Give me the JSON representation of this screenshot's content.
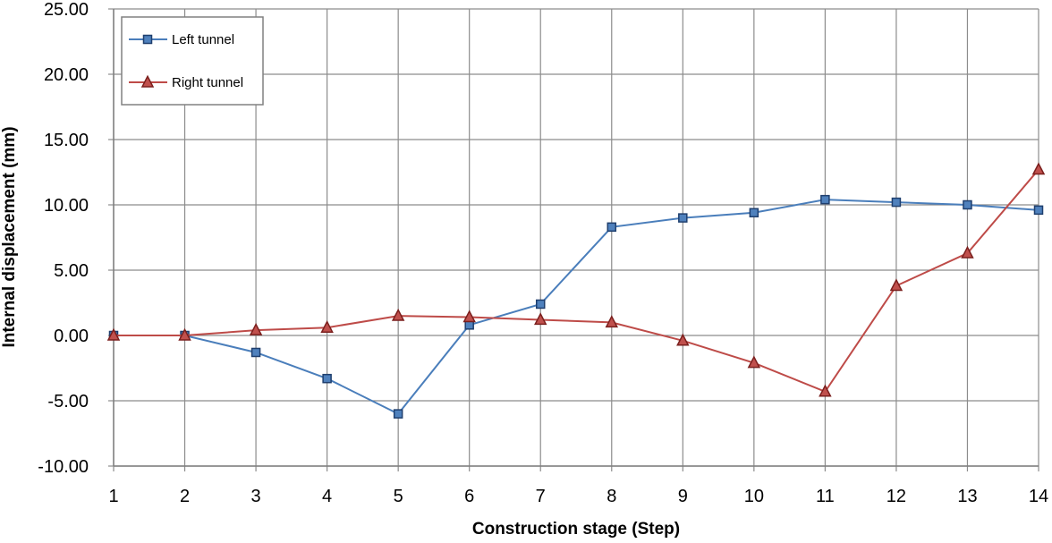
{
  "chart_data": {
    "type": "line",
    "xlabel": "Construction stage (Step)",
    "ylabel": "Internal displacement (mm)",
    "x": [
      1,
      2,
      3,
      4,
      5,
      6,
      7,
      8,
      9,
      10,
      11,
      12,
      13,
      14
    ],
    "xticks": [
      "1",
      "2",
      "3",
      "4",
      "5",
      "6",
      "7",
      "8",
      "9",
      "10",
      "11",
      "12",
      "13",
      "14"
    ],
    "ylim": [
      -10,
      25
    ],
    "yticks": [
      "-10.00",
      "-5.00",
      "0.00",
      "5.00",
      "10.00",
      "15.00",
      "20.00",
      "25.00"
    ],
    "ytick_values": [
      -10,
      -5,
      0,
      5,
      10,
      15,
      20,
      25
    ],
    "grid": true,
    "legend_position": "top-left",
    "series": [
      {
        "name": "Left tunnel",
        "color": "#4a7ebb",
        "marker_fill": "#4f81bd",
        "marker_stroke": "#1f3f6e",
        "marker": "square",
        "values": [
          0.0,
          0.0,
          -1.3,
          -3.3,
          -6.0,
          0.8,
          2.4,
          8.3,
          9.0,
          9.4,
          10.4,
          10.2,
          10.0,
          9.6
        ]
      },
      {
        "name": "Right tunnel",
        "color": "#be4b48",
        "marker_fill": "#c0504d",
        "marker_stroke": "#7a1f1d",
        "marker": "triangle",
        "values": [
          0.0,
          0.0,
          0.4,
          0.6,
          1.5,
          1.4,
          1.2,
          1.0,
          -0.4,
          -2.1,
          -4.3,
          3.8,
          6.3,
          12.7
        ]
      }
    ]
  }
}
